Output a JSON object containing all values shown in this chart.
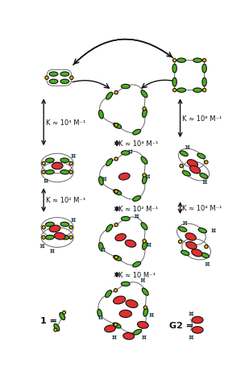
{
  "background_color": "#ffffff",
  "green_color": "#4caf20",
  "red_color": "#e03030",
  "yellow_color": "#f0c000",
  "cyan_color": "#70d0d0",
  "black_color": "#111111",
  "gray_color": "#666666",
  "binding_constants": {
    "left_top": "K ≈ 10³ M⁻¹",
    "left_mid": "K ≈ 10² M⁻¹",
    "center_top": "K ≈ 10⁴ M⁻¹",
    "center_mid": "K ≈ 10² M⁻¹",
    "center_bot": "K ≈ 10 M⁻¹",
    "right_top": "K ≈ 10⁶ M⁻¹",
    "right_mid": "K ≈ 10⁴ M⁻¹"
  }
}
